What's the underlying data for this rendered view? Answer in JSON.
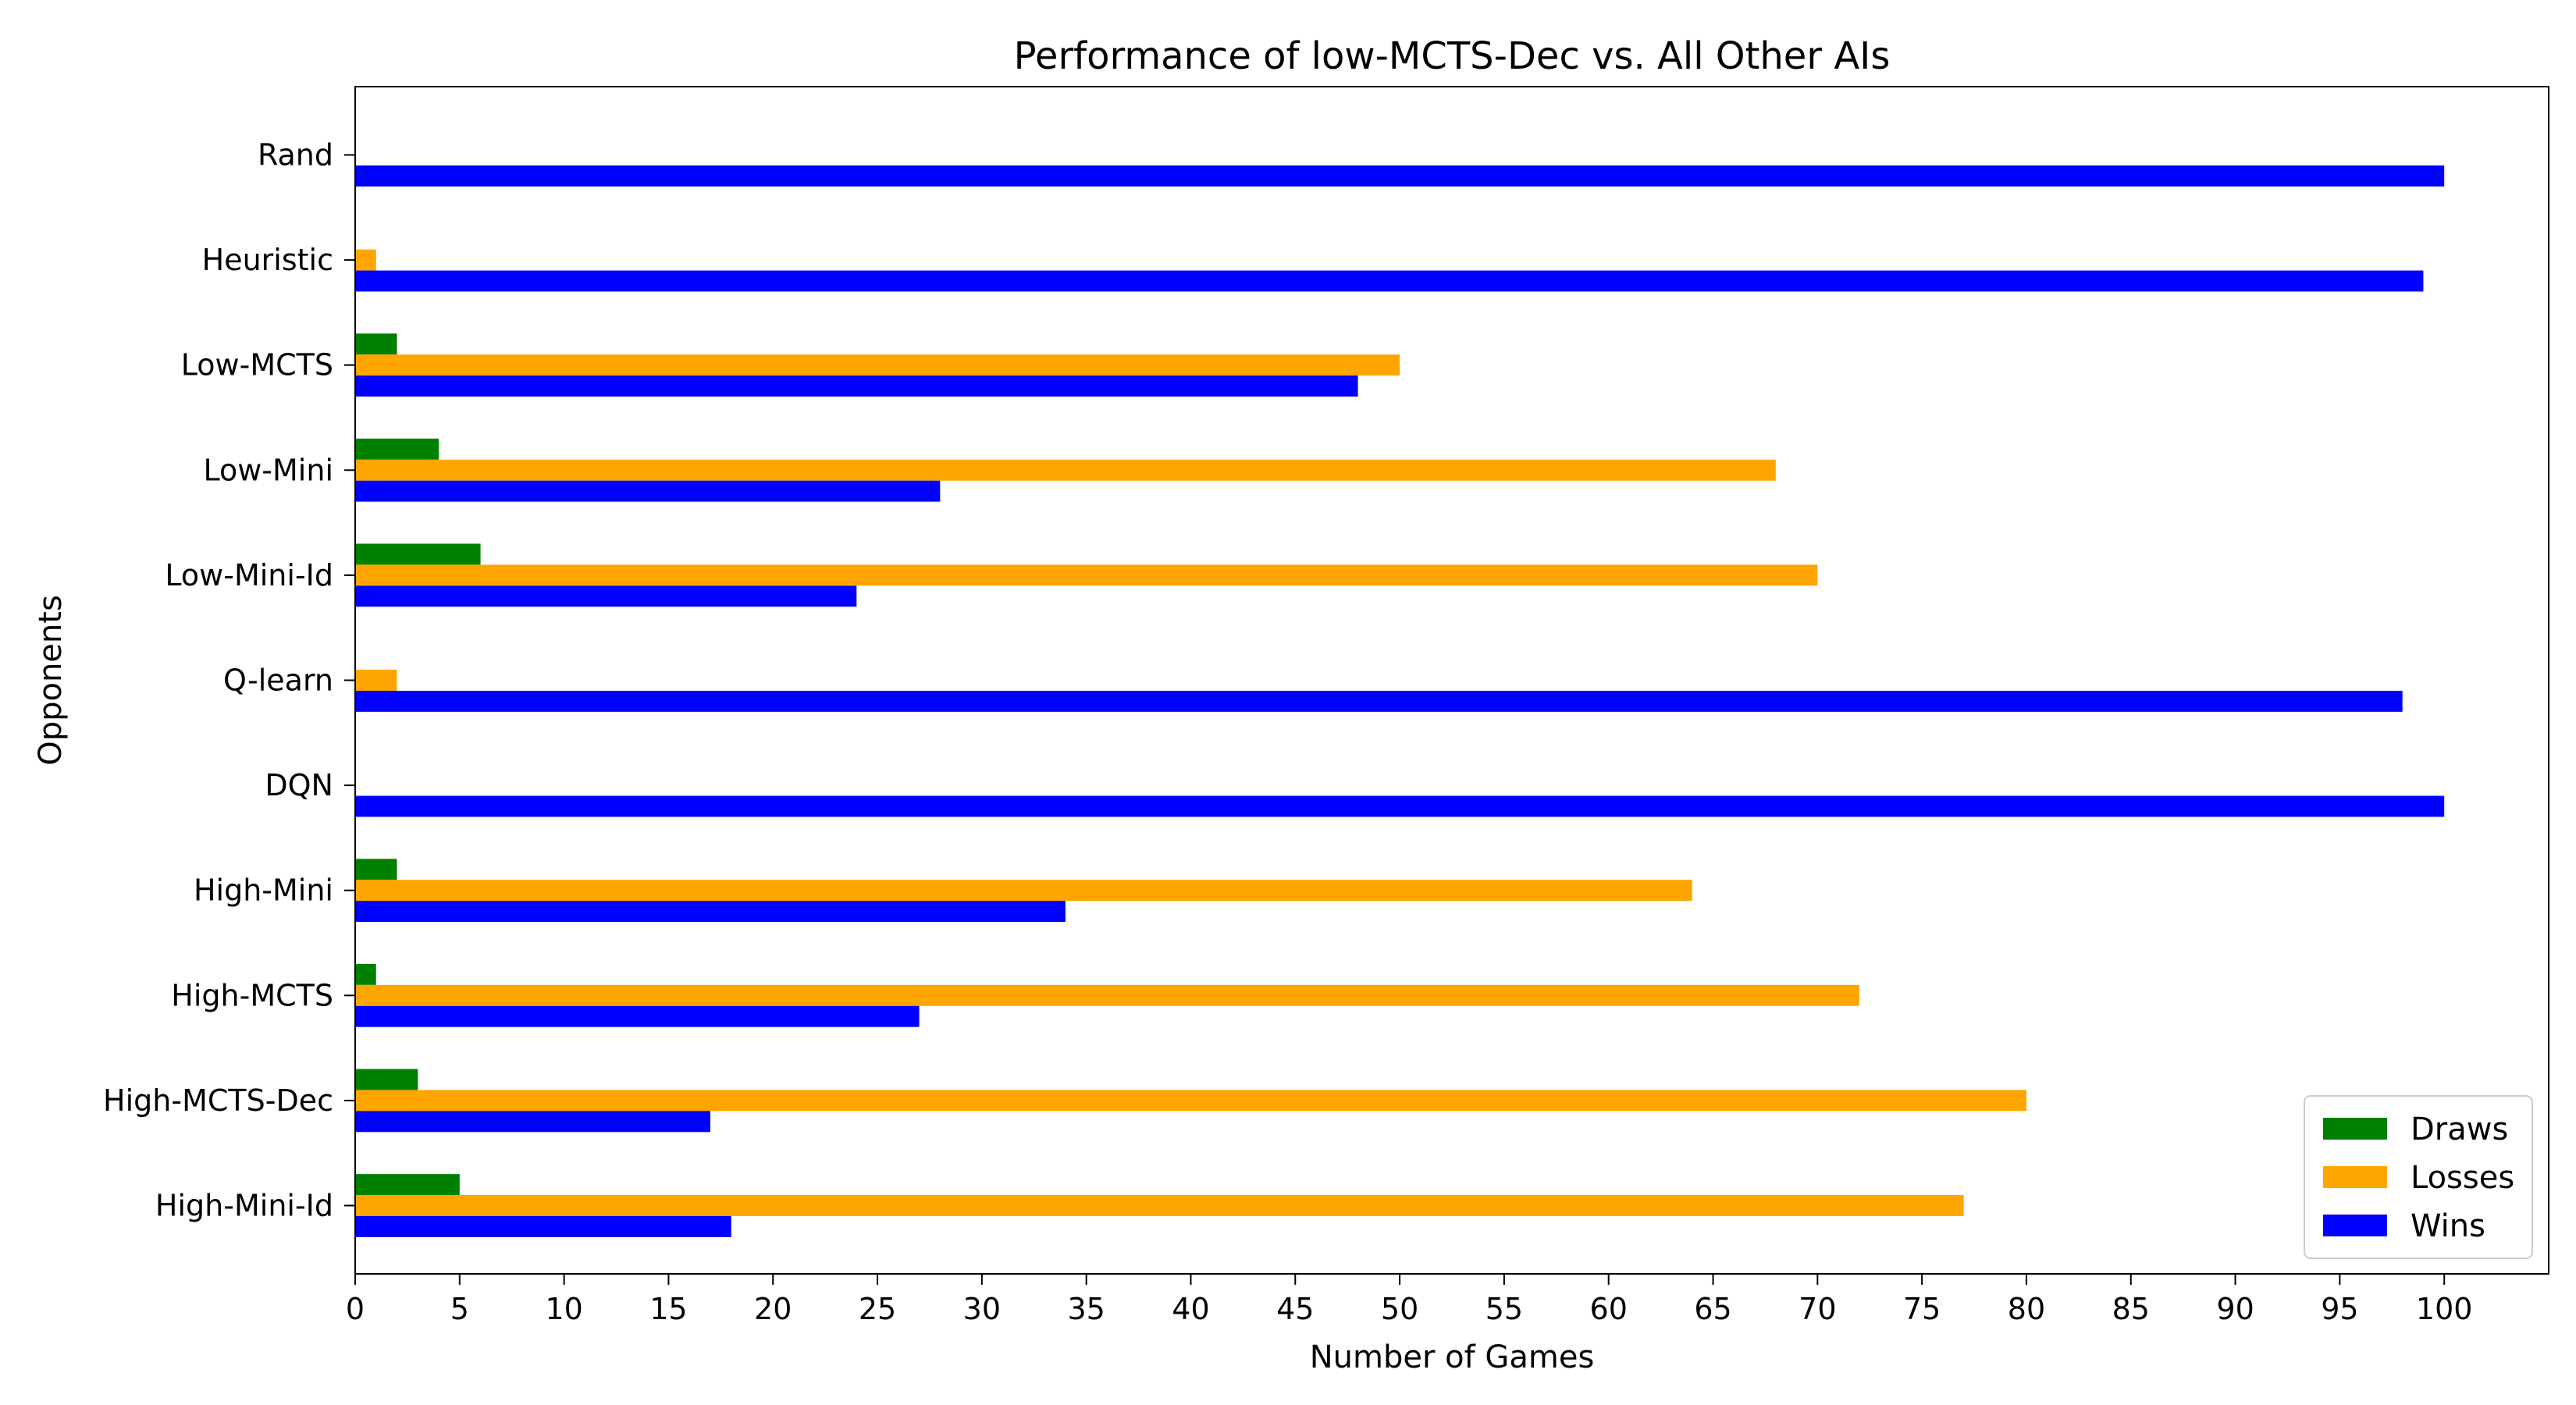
{
  "chart_data": {
    "type": "bar",
    "orientation": "horizontal",
    "title": "Performance of low-MCTS-Dec vs. All Other AIs",
    "xlabel": "Number of Games",
    "ylabel": "Opponents",
    "xlim": [
      0,
      105
    ],
    "x_ticks": [
      0,
      5,
      10,
      15,
      20,
      25,
      30,
      35,
      40,
      45,
      50,
      55,
      60,
      65,
      70,
      75,
      80,
      85,
      90,
      95,
      100
    ],
    "grid": false,
    "legend_position": "lower-right",
    "categories": [
      "Rand",
      "Heuristic",
      "Low-MCTS",
      "Low-Mini",
      "Low-Mini-Id",
      "Q-learn",
      "DQN",
      "High-Mini",
      "High-MCTS",
      "High-MCTS-Dec",
      "High-Mini-Id"
    ],
    "series": [
      {
        "name": "Draws",
        "color": "#008000",
        "values": [
          0,
          0,
          2,
          4,
          6,
          0,
          0,
          2,
          1,
          3,
          5
        ]
      },
      {
        "name": "Losses",
        "color": "#FFA500",
        "values": [
          0,
          1,
          50,
          68,
          70,
          2,
          0,
          64,
          72,
          80,
          77
        ]
      },
      {
        "name": "Wins",
        "color": "#0000FF",
        "values": [
          100,
          99,
          48,
          28,
          24,
          98,
          100,
          34,
          27,
          17,
          18
        ]
      }
    ]
  }
}
